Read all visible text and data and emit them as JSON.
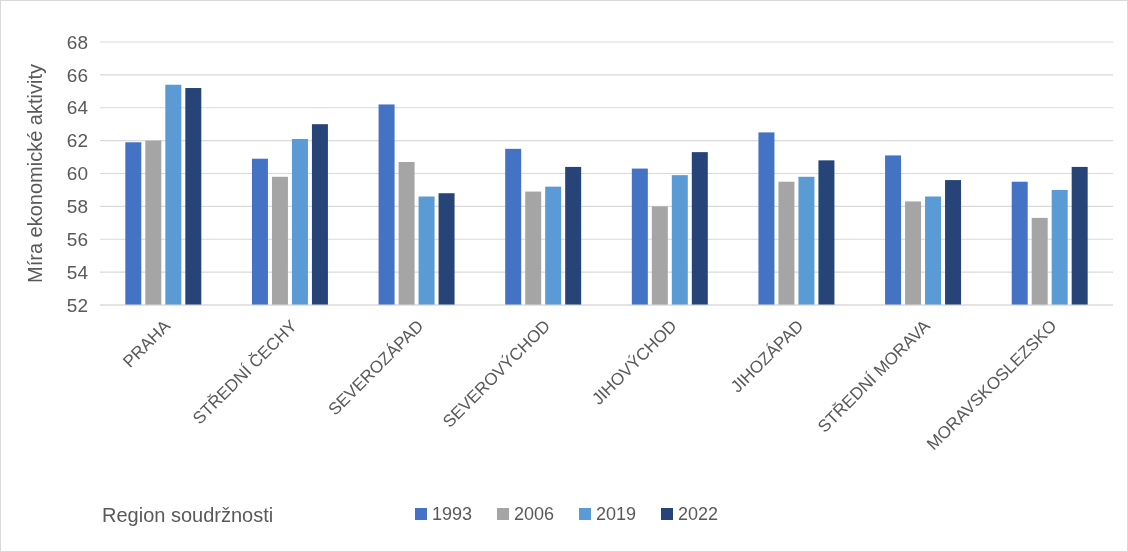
{
  "chart_data": {
    "type": "bar",
    "xlabel": "Region soudržnosti",
    "ylabel": "Míra ekonomické aktivity",
    "categories": [
      "PRAHA",
      "STŘEDNÍ ČECHY",
      "SEVEROZÁPAD",
      "SEVEROVÝCHOD",
      "JIHOVÝCHOD",
      "JIHOZÁPAD",
      "STŘEDNÍ MORAVA",
      "MORAVSKOSLEZSKO"
    ],
    "series": [
      {
        "name": "1993",
        "color": "#4472c4",
        "values": [
          61.9,
          60.9,
          64.2,
          61.5,
          60.3,
          62.5,
          61.1,
          59.5
        ]
      },
      {
        "name": "2006",
        "color": "#a5a5a5",
        "values": [
          62.0,
          59.8,
          60.7,
          58.9,
          58.0,
          59.5,
          58.3,
          57.3
        ]
      },
      {
        "name": "2019",
        "color": "#5b9bd5",
        "values": [
          65.4,
          62.1,
          58.6,
          59.2,
          59.9,
          59.8,
          58.6,
          59.0
        ]
      },
      {
        "name": "2022",
        "color": "#264478",
        "values": [
          65.2,
          63.0,
          58.8,
          60.4,
          61.3,
          60.8,
          59.6,
          60.4
        ]
      }
    ],
    "ylim": [
      52,
      68
    ],
    "yticks": [
      52,
      54,
      56,
      58,
      60,
      62,
      64,
      66,
      68
    ],
    "grid": "y",
    "legend": "bottom"
  }
}
